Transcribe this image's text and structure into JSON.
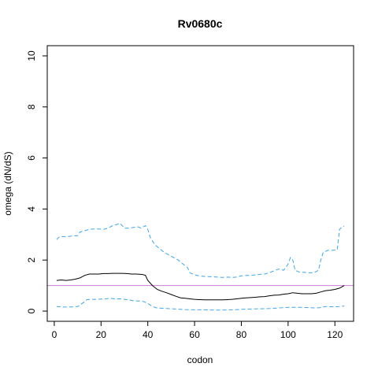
{
  "chart_data": {
    "type": "line",
    "title": "Rv0680c",
    "xlabel": "codon",
    "ylabel": "omega (dN/dS)",
    "xlim": [
      -3,
      128
    ],
    "ylim": [
      -0.4,
      10.4
    ],
    "xticks": [
      0,
      20,
      40,
      60,
      80,
      100,
      120
    ],
    "yticks": [
      0,
      2,
      4,
      6,
      8,
      10
    ],
    "grid": false,
    "reference_line": {
      "y": 1,
      "color": "#c77fd0"
    },
    "series": [
      {
        "role": "estimate",
        "style": "solid",
        "color": "#000000",
        "points": [
          [
            1,
            1.2
          ],
          [
            3,
            1.22
          ],
          [
            5,
            1.2
          ],
          [
            7,
            1.22
          ],
          [
            9,
            1.25
          ],
          [
            11,
            1.3
          ],
          [
            13,
            1.4
          ],
          [
            15,
            1.45
          ],
          [
            17,
            1.45
          ],
          [
            19,
            1.45
          ],
          [
            21,
            1.47
          ],
          [
            23,
            1.47
          ],
          [
            25,
            1.48
          ],
          [
            27,
            1.48
          ],
          [
            29,
            1.48
          ],
          [
            31,
            1.47
          ],
          [
            33,
            1.45
          ],
          [
            35,
            1.45
          ],
          [
            37,
            1.44
          ],
          [
            38,
            1.43
          ],
          [
            39,
            1.4
          ],
          [
            40,
            1.2
          ],
          [
            42,
            1.0
          ],
          [
            44,
            0.85
          ],
          [
            46,
            0.78
          ],
          [
            48,
            0.72
          ],
          [
            50,
            0.65
          ],
          [
            52,
            0.58
          ],
          [
            54,
            0.52
          ],
          [
            56,
            0.5
          ],
          [
            58,
            0.48
          ],
          [
            60,
            0.46
          ],
          [
            62,
            0.45
          ],
          [
            64,
            0.44
          ],
          [
            66,
            0.44
          ],
          [
            68,
            0.44
          ],
          [
            70,
            0.44
          ],
          [
            72,
            0.44
          ],
          [
            74,
            0.45
          ],
          [
            76,
            0.46
          ],
          [
            78,
            0.48
          ],
          [
            80,
            0.5
          ],
          [
            82,
            0.52
          ],
          [
            84,
            0.53
          ],
          [
            86,
            0.54
          ],
          [
            88,
            0.56
          ],
          [
            90,
            0.57
          ],
          [
            92,
            0.6
          ],
          [
            94,
            0.62
          ],
          [
            96,
            0.63
          ],
          [
            98,
            0.66
          ],
          [
            100,
            0.68
          ],
          [
            101,
            0.7
          ],
          [
            102,
            0.72
          ],
          [
            104,
            0.7
          ],
          [
            106,
            0.68
          ],
          [
            108,
            0.68
          ],
          [
            110,
            0.68
          ],
          [
            112,
            0.7
          ],
          [
            114,
            0.75
          ],
          [
            116,
            0.8
          ],
          [
            118,
            0.82
          ],
          [
            120,
            0.85
          ],
          [
            122,
            0.9
          ],
          [
            124,
            1.0
          ]
        ]
      },
      {
        "role": "upper bound",
        "style": "dashed",
        "color": "#3ea6e8",
        "points": [
          [
            1,
            2.8
          ],
          [
            2,
            2.9
          ],
          [
            4,
            2.92
          ],
          [
            6,
            2.92
          ],
          [
            8,
            2.95
          ],
          [
            10,
            2.95
          ],
          [
            11,
            3.1
          ],
          [
            13,
            3.15
          ],
          [
            15,
            3.2
          ],
          [
            17,
            3.22
          ],
          [
            19,
            3.22
          ],
          [
            21,
            3.2
          ],
          [
            23,
            3.25
          ],
          [
            25,
            3.35
          ],
          [
            27,
            3.4
          ],
          [
            28,
            3.45
          ],
          [
            30,
            3.25
          ],
          [
            32,
            3.25
          ],
          [
            34,
            3.28
          ],
          [
            36,
            3.3
          ],
          [
            37,
            3.25
          ],
          [
            38,
            3.3
          ],
          [
            39,
            3.35
          ],
          [
            40,
            3.2
          ],
          [
            41,
            2.9
          ],
          [
            43,
            2.6
          ],
          [
            45,
            2.45
          ],
          [
            47,
            2.3
          ],
          [
            49,
            2.2
          ],
          [
            51,
            2.1
          ],
          [
            53,
            2.0
          ],
          [
            55,
            1.85
          ],
          [
            57,
            1.7
          ],
          [
            58,
            1.5
          ],
          [
            60,
            1.42
          ],
          [
            62,
            1.38
          ],
          [
            64,
            1.36
          ],
          [
            66,
            1.35
          ],
          [
            68,
            1.34
          ],
          [
            70,
            1.33
          ],
          [
            72,
            1.32
          ],
          [
            74,
            1.33
          ],
          [
            76,
            1.32
          ],
          [
            78,
            1.33
          ],
          [
            80,
            1.38
          ],
          [
            82,
            1.4
          ],
          [
            84,
            1.4
          ],
          [
            86,
            1.42
          ],
          [
            88,
            1.44
          ],
          [
            90,
            1.45
          ],
          [
            92,
            1.5
          ],
          [
            94,
            1.58
          ],
          [
            96,
            1.65
          ],
          [
            98,
            1.6
          ],
          [
            99,
            1.7
          ],
          [
            100,
            1.85
          ],
          [
            101,
            2.1
          ],
          [
            102,
            2.0
          ],
          [
            103,
            1.6
          ],
          [
            105,
            1.52
          ],
          [
            107,
            1.52
          ],
          [
            109,
            1.5
          ],
          [
            111,
            1.5
          ],
          [
            113,
            1.6
          ],
          [
            114,
            2.0
          ],
          [
            115,
            2.3
          ],
          [
            117,
            2.38
          ],
          [
            119,
            2.38
          ],
          [
            121,
            2.4
          ],
          [
            122,
            3.2
          ],
          [
            123,
            3.3
          ],
          [
            124,
            3.32
          ]
        ]
      },
      {
        "role": "lower bound",
        "style": "dashed",
        "color": "#3ea6e8",
        "points": [
          [
            1,
            0.18
          ],
          [
            4,
            0.16
          ],
          [
            7,
            0.16
          ],
          [
            10,
            0.18
          ],
          [
            12,
            0.3
          ],
          [
            14,
            0.45
          ],
          [
            16,
            0.46
          ],
          [
            18,
            0.46
          ],
          [
            20,
            0.47
          ],
          [
            22,
            0.48
          ],
          [
            24,
            0.5
          ],
          [
            26,
            0.48
          ],
          [
            28,
            0.48
          ],
          [
            30,
            0.46
          ],
          [
            32,
            0.44
          ],
          [
            34,
            0.4
          ],
          [
            36,
            0.4
          ],
          [
            38,
            0.38
          ],
          [
            40,
            0.3
          ],
          [
            42,
            0.18
          ],
          [
            44,
            0.12
          ],
          [
            48,
            0.1
          ],
          [
            52,
            0.08
          ],
          [
            56,
            0.06
          ],
          [
            60,
            0.05
          ],
          [
            64,
            0.05
          ],
          [
            68,
            0.04
          ],
          [
            72,
            0.04
          ],
          [
            76,
            0.05
          ],
          [
            80,
            0.07
          ],
          [
            84,
            0.08
          ],
          [
            88,
            0.09
          ],
          [
            92,
            0.1
          ],
          [
            96,
            0.12
          ],
          [
            100,
            0.15
          ],
          [
            104,
            0.15
          ],
          [
            108,
            0.14
          ],
          [
            112,
            0.12
          ],
          [
            114,
            0.14
          ],
          [
            116,
            0.18
          ],
          [
            118,
            0.17
          ],
          [
            120,
            0.17
          ],
          [
            122,
            0.18
          ],
          [
            124,
            0.2
          ]
        ]
      }
    ]
  }
}
